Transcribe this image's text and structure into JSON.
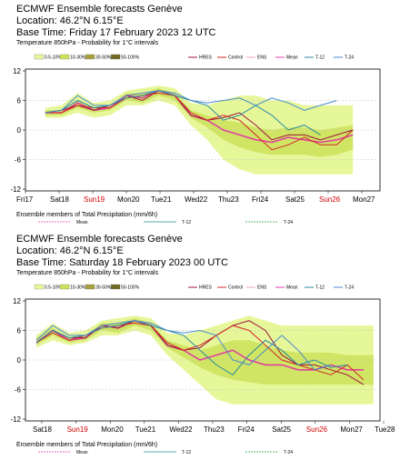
{
  "colors": {
    "prob_0_10": "#e6f79a",
    "prob_10_30": "#cbe25a",
    "prob_30_50": "#a79f3c",
    "prob_50_100": "#6f6a20",
    "hres": "#a0143c",
    "control": "#d22828",
    "ens": "#f0a0c8",
    "mean": "#e040a0",
    "t12": "#2a8aa0",
    "t24": "#4a8ad0",
    "t24_precip": "#2aa02a"
  },
  "chart_data": [
    {
      "type": "area",
      "title": "ECMWF Ensemble forecasts Genève",
      "location_line": "Location:  46.2°N 6.15°E",
      "base_time": "Base Time: Friday 17 February 2023 12 UTC",
      "subtitle": "Temperature 850hPa - Probability for 1°C intervals",
      "prob_legend": [
        "0.5-10%",
        "10-30%",
        "30-50%",
        "50-100%"
      ],
      "series_legend": [
        "HRES",
        "Control",
        "ENS",
        "Mean",
        "T-12",
        "T-24"
      ],
      "x_start": "Fri17",
      "x_ticks": [
        "Fri17",
        "Sat18",
        "Sun19",
        "Mon20",
        "Tue21",
        "Wed22",
        "Thu23",
        "Fri24",
        "Sat25",
        "Sun26",
        "Mon27"
      ],
      "x_tick_colors": [
        "#000000",
        "#000000",
        "#d00000",
        "#000000",
        "#000000",
        "#000000",
        "#000000",
        "#000000",
        "#000000",
        "#d00000",
        "#000000"
      ],
      "y_ticks": [
        12,
        6,
        0,
        -6,
        -12
      ],
      "ylim": [
        -12,
        12
      ],
      "x_days": 10.5,
      "precip_title": "Ensemble members of Total Precipitation (mm/6h)",
      "precip_legend": [
        "Mean",
        "T-12",
        "T-24"
      ],
      "series": [
        {
          "name": "Mean",
          "x": [
            0.5,
            1,
            1.5,
            2,
            2.5,
            3,
            3.5,
            4,
            4.5,
            5,
            5.5,
            6,
            6.5,
            7,
            7.5,
            8,
            8.5,
            9,
            9.5,
            10
          ],
          "values": [
            3.5,
            3.5,
            5.5,
            4,
            4.5,
            7,
            6.5,
            8,
            7,
            3,
            2,
            0,
            -1,
            -2,
            -2.5,
            -1.5,
            -2,
            -2.5,
            -2,
            -1
          ]
        },
        {
          "name": "HRES",
          "x": [
            0.5,
            1,
            1.5,
            2,
            2.5,
            3,
            3.5,
            4,
            4.5,
            5,
            5.5,
            6,
            6.5,
            7,
            7.5,
            8,
            8.5,
            9,
            9.5,
            10
          ],
          "values": [
            3.5,
            4,
            5,
            4,
            5,
            7,
            6,
            8,
            7,
            3,
            2,
            2.5,
            3.5,
            1,
            -2,
            -1,
            -1,
            -2,
            -1,
            0
          ]
        },
        {
          "name": "Control",
          "x": [
            0.5,
            1,
            1.5,
            2,
            2.5,
            3,
            3.5,
            4,
            4.5,
            5,
            5.5,
            6,
            6.5,
            7,
            7.5,
            8,
            8.5,
            9,
            9.5,
            10
          ],
          "values": [
            3.5,
            3.5,
            5,
            4.5,
            4.5,
            6.5,
            7,
            7.5,
            7,
            3.5,
            2,
            3,
            2,
            -1,
            -4,
            -3,
            -1.5,
            -3,
            -3,
            0
          ]
        },
        {
          "name": "T-12",
          "x": [
            0.5,
            1,
            1.5,
            2,
            2.5,
            3,
            3.5,
            4,
            4.5,
            5,
            5.5,
            6,
            6.5,
            7,
            7.5,
            8,
            8.5,
            9
          ],
          "values": [
            3.5,
            4,
            6,
            4.5,
            5,
            6.5,
            7,
            8,
            7,
            6,
            5,
            2,
            3,
            5,
            3,
            0,
            1,
            -1
          ]
        },
        {
          "name": "T-24",
          "x": [
            0.5,
            1,
            1.5,
            2,
            2.5,
            3,
            3.5,
            4,
            4.5,
            5,
            5.5,
            6,
            6.5,
            7,
            7.5,
            8,
            8.5,
            9,
            9.5
          ],
          "values": [
            3.5,
            4,
            7,
            5,
            5,
            7,
            7.5,
            8,
            7.5,
            6,
            5.5,
            6,
            6.5,
            5,
            6.5,
            5.5,
            4,
            5,
            6
          ]
        }
      ],
      "band_x": [
        0.5,
        1,
        1.5,
        2,
        2.5,
        3,
        3.5,
        4,
        4.5,
        5,
        5.5,
        6,
        6.5,
        7,
        7.5,
        8,
        8.5,
        9,
        9.5,
        10
      ],
      "band_outer": {
        "low": [
          2.5,
          2.5,
          3.5,
          2.5,
          3,
          5,
          5,
          6,
          5,
          1,
          -2,
          -6,
          -8,
          -9,
          -9,
          -9,
          -9,
          -9,
          -9,
          -9
        ],
        "high": [
          4.5,
          5,
          7.5,
          5.5,
          6,
          8,
          8.5,
          9,
          8.5,
          5.5,
          5,
          6,
          7,
          7,
          6,
          6,
          5,
          5,
          5,
          5
        ]
      },
      "band_inner": {
        "low": [
          3,
          3,
          4.5,
          3.5,
          4,
          6,
          5.5,
          7,
          6,
          2.5,
          0.5,
          -2,
          -3.5,
          -4.5,
          -5,
          -5,
          -5,
          -5.5,
          -5,
          -4
        ],
        "high": [
          4,
          4,
          6,
          4.5,
          5,
          7.5,
          7.5,
          8.5,
          7.5,
          4,
          3,
          2,
          1.5,
          0.5,
          0,
          0.5,
          0.5,
          0,
          0.5,
          1
        ]
      }
    },
    {
      "type": "area",
      "title": "ECMWF Ensemble forecasts Genève",
      "location_line": "Location:  46.2°N 6.15°E",
      "base_time": "Base Time: Saturday 18 February 2023 00 UTC",
      "subtitle": "Temperature 850hPa - Probability for 1°C intervals",
      "prob_legend": [
        "0.5-10%",
        "10-30%",
        "30-50%",
        "50-100%"
      ],
      "series_legend": [
        "HRES",
        "Control",
        "ENS",
        "Mean",
        "T-12",
        "T-24"
      ],
      "x_start": "",
      "x_ticks": [
        "Sat18",
        "Sun19",
        "Mon20",
        "Tue21",
        "Wed22",
        "Thu23",
        "Fri24",
        "Sat25",
        "Sun26",
        "Mon27",
        "Tue28"
      ],
      "x_tick_colors": [
        "#000000",
        "#d00000",
        "#000000",
        "#000000",
        "#000000",
        "#000000",
        "#000000",
        "#000000",
        "#d00000",
        "#000000",
        "#000000"
      ],
      "y_ticks": [
        12,
        6,
        0,
        -6,
        -12
      ],
      "ylim": [
        -12,
        12
      ],
      "x_days": 10.5,
      "precip_title": "Ensemble members of Total Precipitation (mm/6h)",
      "precip_legend": [
        "Mean",
        "T-12",
        "T-24"
      ],
      "series": [
        {
          "name": "Mean",
          "x": [
            0,
            0.5,
            1,
            1.5,
            2,
            2.5,
            3,
            3.5,
            4,
            4.5,
            5,
            5.5,
            6,
            6.5,
            7,
            7.5,
            8,
            8.5,
            9,
            9.5,
            10
          ],
          "values": [
            3.5,
            6,
            4,
            4.5,
            7,
            6.5,
            8,
            7,
            3,
            2,
            0,
            1,
            2,
            0,
            -1,
            -1,
            -2,
            -2,
            -1,
            -2,
            -2
          ]
        },
        {
          "name": "HRES",
          "x": [
            0,
            0.5,
            1,
            1.5,
            2,
            2.5,
            3,
            3.5,
            4,
            4.5,
            5,
            5.5,
            6,
            6.5,
            7,
            7.5,
            8,
            8.5,
            9,
            9.5,
            10
          ],
          "values": [
            3.5,
            6,
            4.5,
            4.5,
            7,
            6.5,
            8,
            7,
            3,
            2,
            2.5,
            5,
            7,
            8,
            6,
            1,
            -1,
            -1,
            -2,
            -3,
            -5
          ]
        },
        {
          "name": "Control",
          "x": [
            0,
            0.5,
            1,
            1.5,
            2,
            2.5,
            3,
            3.5,
            4,
            4.5,
            5,
            5.5,
            6,
            6.5,
            7,
            7.5,
            8,
            8.5,
            9,
            9.5,
            10
          ],
          "values": [
            3.5,
            5.5,
            4,
            5,
            6.5,
            7,
            7.5,
            7,
            3.5,
            2,
            3,
            5,
            7,
            6,
            3,
            0,
            -1,
            -2,
            -3,
            -1,
            -4
          ]
        },
        {
          "name": "T-12",
          "x": [
            0,
            0.5,
            1,
            1.5,
            2,
            2.5,
            3,
            3.5,
            4,
            4.5,
            5,
            5.5,
            6,
            6.5,
            7,
            7.5,
            8,
            8.5,
            9,
            9.5
          ],
          "values": [
            3.5,
            6,
            4.5,
            5,
            6.5,
            7,
            8,
            7,
            6,
            5,
            2,
            -1,
            -3,
            1,
            4,
            2,
            -1,
            0,
            -1.5,
            -1
          ]
        },
        {
          "name": "T-24",
          "x": [
            0,
            0.5,
            1,
            1.5,
            2,
            2.5,
            3,
            3.5,
            4,
            4.5,
            5,
            5.5,
            6,
            6.5,
            7,
            7.5,
            8,
            8.5,
            9
          ],
          "values": [
            4,
            7,
            5,
            5,
            7,
            7.5,
            8,
            7.5,
            6,
            5.5,
            6,
            5,
            0,
            -1,
            2,
            5,
            2,
            -2,
            -1
          ]
        }
      ],
      "band_x": [
        0,
        0.5,
        1,
        1.5,
        2,
        2.5,
        3,
        3.5,
        4,
        4.5,
        5,
        5.5,
        6,
        6.5,
        7,
        7.5,
        8,
        8.5,
        9,
        9.5,
        10,
        10.3
      ],
      "band_outer": {
        "low": [
          2.5,
          4,
          3,
          3.5,
          5,
          5,
          6,
          5,
          1,
          -2,
          -5,
          -8,
          -9,
          -9,
          -9,
          -9,
          -9,
          -9,
          -9,
          -9,
          -9,
          -9
        ],
        "high": [
          5,
          7.5,
          5.5,
          6,
          8,
          8.5,
          9,
          8.5,
          5.5,
          5,
          6,
          7,
          8,
          9,
          8,
          7,
          7,
          7,
          7,
          7,
          7,
          7
        ]
      },
      "band_inner": {
        "low": [
          3,
          5,
          3.5,
          4,
          6,
          5.5,
          7,
          6,
          2.5,
          0.5,
          -1.5,
          -3,
          -4,
          -4.5,
          -5,
          -5,
          -5,
          -5,
          -5,
          -5,
          -5,
          -5
        ],
        "high": [
          4.5,
          6.5,
          4.5,
          5,
          7.5,
          7.5,
          8.5,
          7.5,
          4,
          3,
          2,
          3,
          4,
          4,
          3,
          2,
          1.5,
          1.5,
          1.5,
          1,
          1,
          1
        ]
      }
    }
  ]
}
